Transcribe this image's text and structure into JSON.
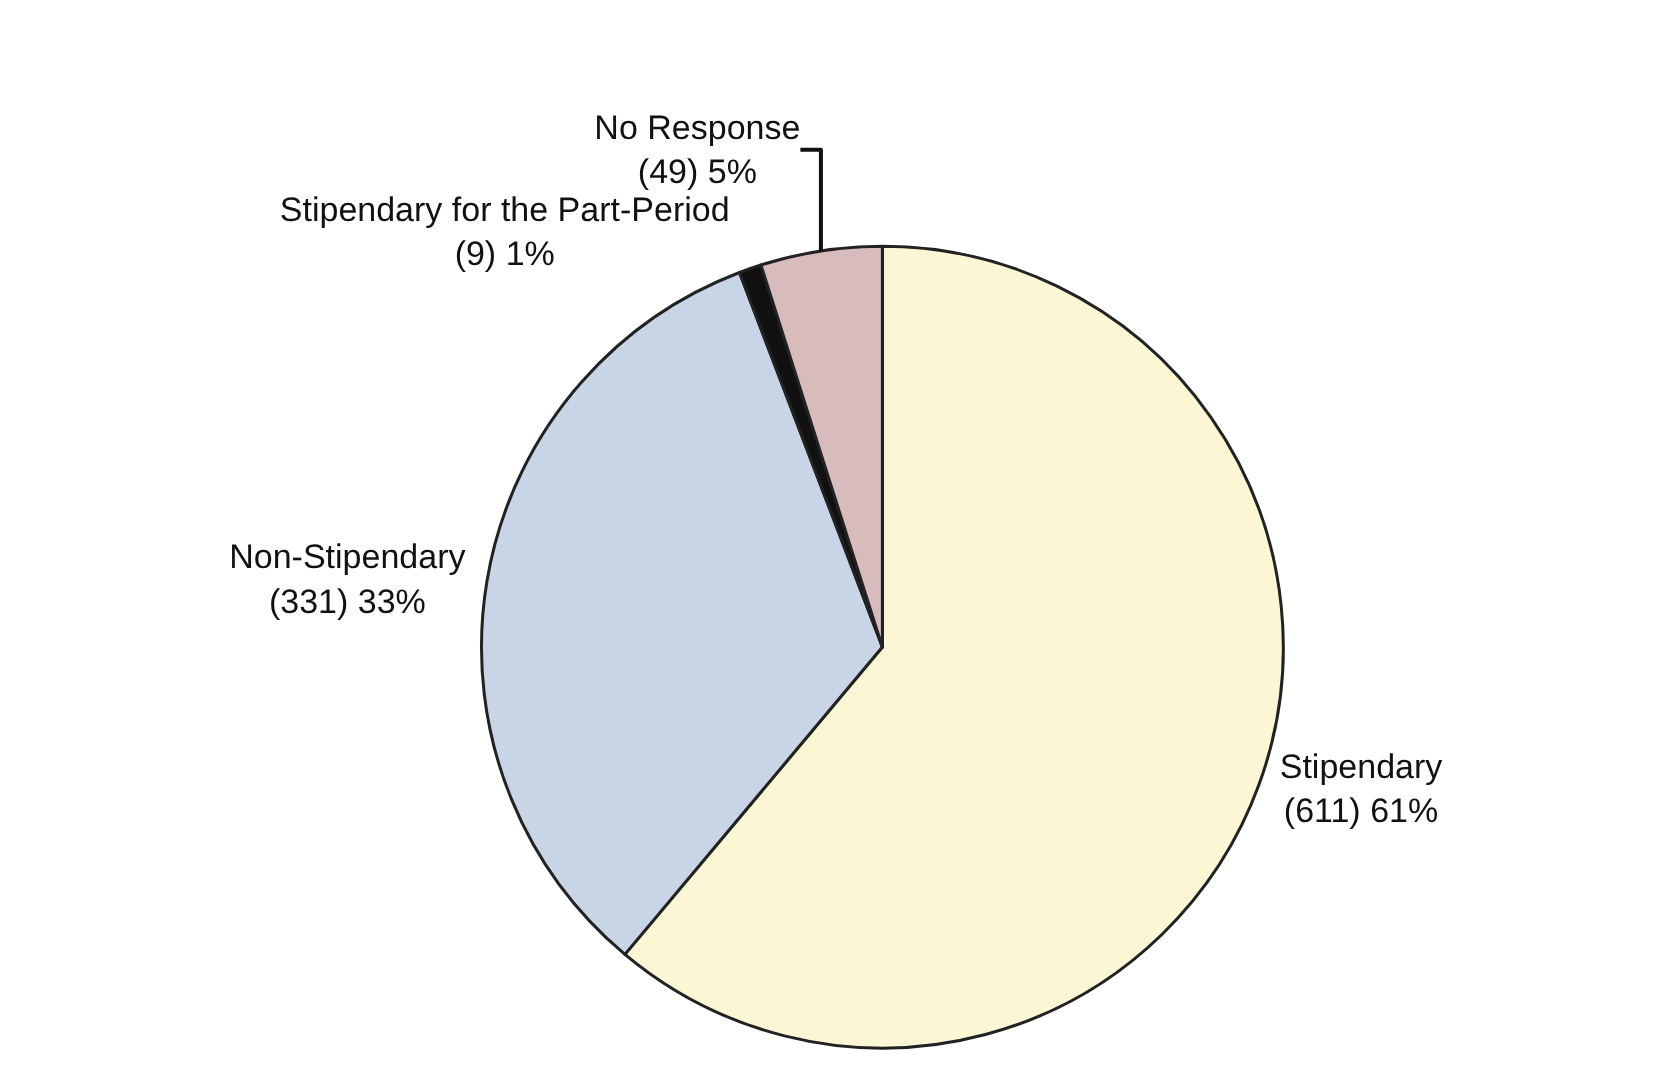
{
  "chart_data": {
    "type": "pie",
    "categories": [
      "Stipendary",
      "Non-Stipendary",
      "Stipendary for the Part-Period",
      "No Response"
    ],
    "values": [
      611,
      331,
      9,
      49
    ],
    "value_labels": [
      "(611) 61%",
      "(331) 33%",
      "(9) 1%",
      "(49) 5%"
    ],
    "colors": [
      "#fbf6d4",
      "#c8d5e6",
      "#111111",
      "#d8bcbd"
    ]
  }
}
